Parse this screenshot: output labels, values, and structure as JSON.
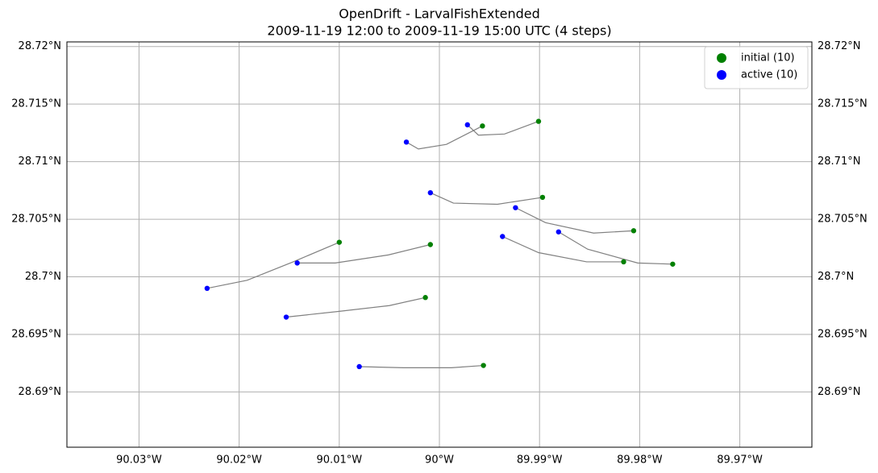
{
  "chart_data": {
    "type": "trajectory",
    "title": "OpenDrift - LarvalFishExtended",
    "subtitle": "2009-11-19 12:00 to 2009-11-19 15:00 UTC (4 steps)",
    "xlim": [
      -90.0372,
      -89.9628
    ],
    "ylim": [
      28.6852,
      28.7204
    ],
    "xticks": [
      {
        "value": -90.03,
        "label": "90.03°W"
      },
      {
        "value": -90.02,
        "label": "90.02°W"
      },
      {
        "value": -90.01,
        "label": "90.01°W"
      },
      {
        "value": -90.0,
        "label": "90°W"
      },
      {
        "value": -89.99,
        "label": "89.99°W"
      },
      {
        "value": -89.98,
        "label": "89.98°W"
      },
      {
        "value": -89.97,
        "label": "89.97°W"
      }
    ],
    "yticks": [
      {
        "value": 28.69,
        "label": "28.69°N"
      },
      {
        "value": 28.695,
        "label": "28.695°N"
      },
      {
        "value": 28.7,
        "label": "28.7°N"
      },
      {
        "value": 28.705,
        "label": "28.705°N"
      },
      {
        "value": 28.71,
        "label": "28.71°N"
      },
      {
        "value": 28.715,
        "label": "28.715°N"
      },
      {
        "value": 28.72,
        "label": "28.72°N"
      }
    ],
    "grid": true,
    "line_color": "#808080",
    "legend": {
      "loc": "upper right",
      "entries": [
        {
          "name": "initial (10)",
          "color": "#008000"
        },
        {
          "name": "active (10)",
          "color": "#0000ff"
        }
      ]
    },
    "trajectories": [
      {
        "x": [
          -89.9901,
          -89.9935,
          -89.9961,
          -89.9972
        ],
        "y": [
          28.7135,
          28.7124,
          28.7123,
          28.7132
        ]
      },
      {
        "x": [
          -89.9957,
          -89.9993,
          -90.0021,
          -90.0033
        ],
        "y": [
          28.7131,
          28.7115,
          28.7111,
          28.7117
        ]
      },
      {
        "x": [
          -89.9897,
          -89.9942,
          -89.9986,
          -90.0009
        ],
        "y": [
          28.7069,
          28.7063,
          28.7064,
          28.7073
        ]
      },
      {
        "x": [
          -89.9806,
          -89.9846,
          -89.9894,
          -89.9924
        ],
        "y": [
          28.704,
          28.7038,
          28.7047,
          28.706
        ]
      },
      {
        "x": [
          -89.9767,
          -89.9802,
          -89.9852,
          -89.9881
        ],
        "y": [
          28.7011,
          28.7012,
          28.7024,
          28.7039
        ]
      },
      {
        "x": [
          -89.9816,
          -89.9853,
          -89.9901,
          -89.9937
        ],
        "y": [
          28.7013,
          28.7013,
          28.7021,
          28.7035
        ]
      },
      {
        "x": [
          -90.0009,
          -90.0051,
          -90.0104,
          -90.0142
        ],
        "y": [
          28.7028,
          28.7019,
          28.7012,
          28.7012
        ]
      },
      {
        "x": [
          -90.01,
          -90.0146,
          -90.0192,
          -90.0232
        ],
        "y": [
          28.703,
          28.7013,
          28.6997,
          28.699
        ]
      },
      {
        "x": [
          -90.0014,
          -90.005,
          -90.01,
          -90.0153
        ],
        "y": [
          28.6982,
          28.6975,
          28.697,
          28.6965
        ]
      },
      {
        "x": [
          -89.9956,
          -89.9988,
          -90.0036,
          -90.008
        ],
        "y": [
          28.6923,
          28.6921,
          28.6921,
          28.6922
        ]
      }
    ]
  }
}
